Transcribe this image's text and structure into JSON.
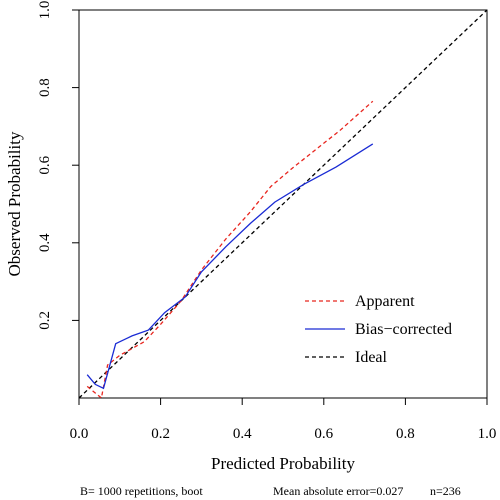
{
  "chart_data": {
    "type": "line",
    "title": "",
    "xlabel": "Predicted Probability",
    "ylabel": "Observed Probability",
    "xlim": [
      0,
      1
    ],
    "ylim": [
      0,
      1
    ],
    "x_ticks": [
      "0.0",
      "0.2",
      "0.4",
      "0.6",
      "0.8",
      "1.0"
    ],
    "y_ticks": [
      "0.2",
      "0.4",
      "0.6",
      "0.8",
      "1.0"
    ],
    "grid": false,
    "legend_position": "bottom-right",
    "series": [
      {
        "name": "Apparent",
        "color": "#e8261f",
        "style": "dashed",
        "points": [
          [
            0.02,
            0.03
          ],
          [
            0.055,
            0.0
          ],
          [
            0.07,
            0.085
          ],
          [
            0.1,
            0.11
          ],
          [
            0.16,
            0.145
          ],
          [
            0.2,
            0.19
          ],
          [
            0.25,
            0.25
          ],
          [
            0.3,
            0.33
          ],
          [
            0.36,
            0.41
          ],
          [
            0.42,
            0.48
          ],
          [
            0.47,
            0.545
          ],
          [
            0.52,
            0.59
          ],
          [
            0.58,
            0.64
          ],
          [
            0.64,
            0.69
          ],
          [
            0.72,
            0.765
          ]
        ]
      },
      {
        "name": "Bias−corrected",
        "color": "#1a2bd4",
        "style": "solid",
        "points": [
          [
            0.02,
            0.06
          ],
          [
            0.04,
            0.035
          ],
          [
            0.06,
            0.025
          ],
          [
            0.09,
            0.14
          ],
          [
            0.13,
            0.16
          ],
          [
            0.17,
            0.175
          ],
          [
            0.21,
            0.22
          ],
          [
            0.26,
            0.26
          ],
          [
            0.3,
            0.325
          ],
          [
            0.36,
            0.39
          ],
          [
            0.42,
            0.45
          ],
          [
            0.48,
            0.505
          ],
          [
            0.55,
            0.55
          ],
          [
            0.63,
            0.595
          ],
          [
            0.72,
            0.655
          ]
        ]
      },
      {
        "name": "Ideal",
        "color": "#000000",
        "style": "dashed",
        "points": [
          [
            0,
            0
          ],
          [
            1,
            1
          ]
        ]
      }
    ]
  },
  "footer": {
    "left": "B= 1000 repetitions, boot",
    "mae": "Mean absolute error=0.027",
    "n": "n=236"
  }
}
